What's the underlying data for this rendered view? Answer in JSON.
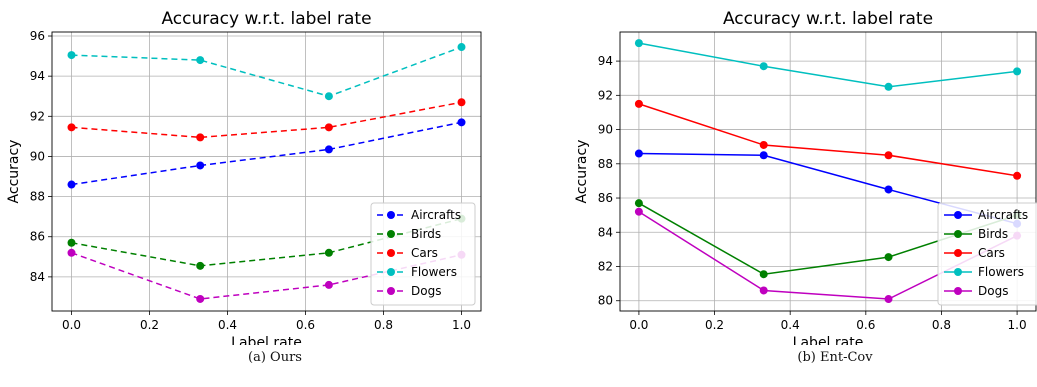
{
  "chart_data": [
    {
      "type": "line",
      "title": "Accuracy w.r.t. label rate",
      "xlabel": "Label rate",
      "ylabel": "Accuracy",
      "x": [
        0.0,
        0.33,
        0.66,
        1.0
      ],
      "xlim": [
        -0.05,
        1.05
      ],
      "ylim": [
        82.3,
        96.2
      ],
      "xticks": [
        0.0,
        0.2,
        0.4,
        0.6,
        0.8,
        1.0
      ],
      "xtick_labels": [
        "0.0",
        "0.2",
        "0.4",
        "0.6",
        "0.8",
        "1.0"
      ],
      "yticks": [
        84,
        86,
        88,
        90,
        92,
        94,
        96
      ],
      "ytick_labels": [
        "84",
        "86",
        "88",
        "90",
        "92",
        "94",
        "96"
      ],
      "line_style": "dashed",
      "grid": true,
      "legend_position": "lower-right",
      "series": [
        {
          "name": "Aircrafts",
          "color": "#0000ff",
          "values": [
            88.6,
            89.55,
            90.35,
            91.7
          ]
        },
        {
          "name": "Birds",
          "color": "#008000",
          "values": [
            85.7,
            84.55,
            85.2,
            86.9
          ]
        },
        {
          "name": "Cars",
          "color": "#ff0000",
          "values": [
            91.45,
            90.95,
            91.45,
            92.7
          ]
        },
        {
          "name": "Flowers",
          "color": "#00bfbf",
          "values": [
            95.05,
            94.8,
            93.0,
            95.45
          ]
        },
        {
          "name": "Dogs",
          "color": "#bf00bf",
          "values": [
            85.2,
            82.9,
            83.6,
            85.1
          ]
        }
      ]
    },
    {
      "type": "line",
      "title": "Accuracy w.r.t. label rate",
      "xlabel": "Label rate",
      "ylabel": "Accuracy",
      "x": [
        0.0,
        0.33,
        0.66,
        1.0
      ],
      "xlim": [
        -0.05,
        1.05
      ],
      "ylim": [
        79.4,
        95.7
      ],
      "xticks": [
        0.0,
        0.2,
        0.4,
        0.6,
        0.8,
        1.0
      ],
      "xtick_labels": [
        "0.0",
        "0.2",
        "0.4",
        "0.6",
        "0.8",
        "1.0"
      ],
      "yticks": [
        80,
        82,
        84,
        86,
        88,
        90,
        92,
        94
      ],
      "ytick_labels": [
        "80",
        "82",
        "84",
        "86",
        "88",
        "90",
        "92",
        "94"
      ],
      "line_style": "solid",
      "grid": true,
      "legend_position": "lower-right",
      "series": [
        {
          "name": "Aircrafts",
          "color": "#0000ff",
          "values": [
            88.6,
            88.5,
            86.5,
            84.5
          ]
        },
        {
          "name": "Birds",
          "color": "#008000",
          "values": [
            85.7,
            81.55,
            82.55,
            85.0
          ]
        },
        {
          "name": "Cars",
          "color": "#ff0000",
          "values": [
            91.5,
            89.1,
            88.5,
            87.3
          ]
        },
        {
          "name": "Flowers",
          "color": "#00bfbf",
          "values": [
            95.05,
            93.7,
            92.5,
            93.4
          ]
        },
        {
          "name": "Dogs",
          "color": "#bf00bf",
          "values": [
            85.2,
            80.6,
            80.1,
            83.8
          ]
        }
      ]
    }
  ],
  "captions": [
    "(a)  Ours",
    "(b)  Ent-Cov"
  ]
}
